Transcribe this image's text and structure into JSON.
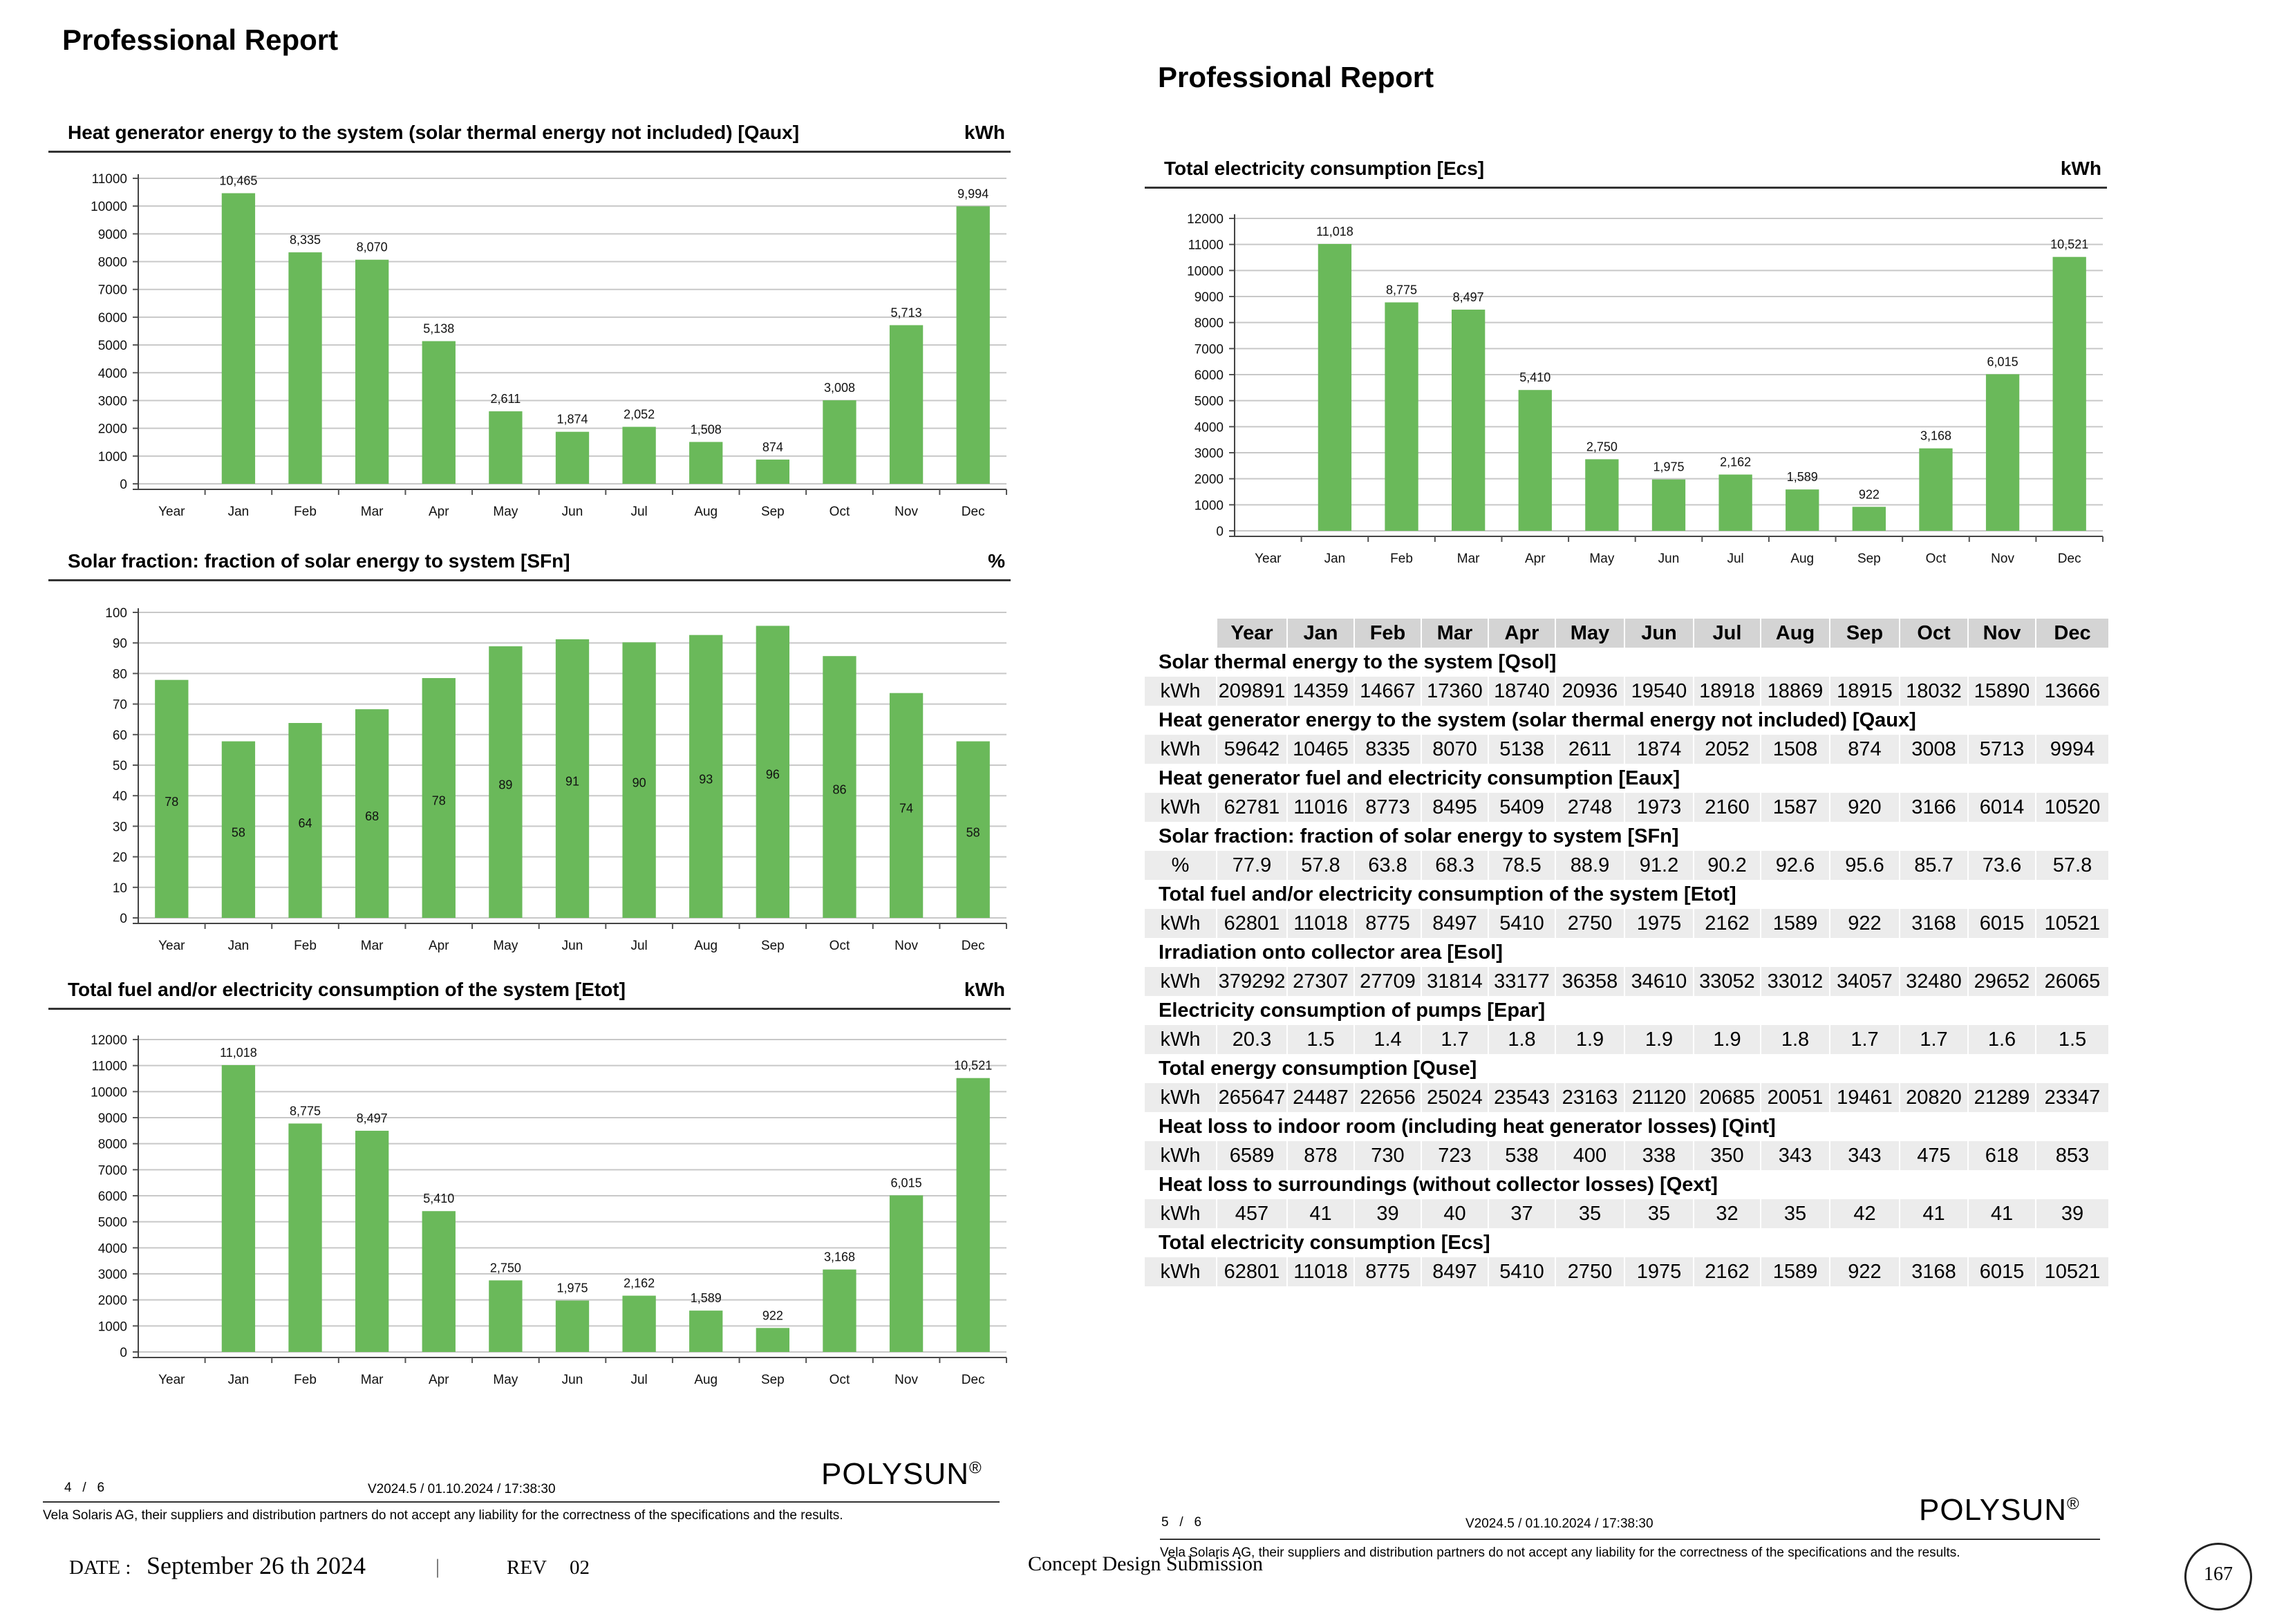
{
  "left_page": {
    "title": "Professional Report",
    "footer": {
      "page": "4",
      "sep": "/",
      "total": "6",
      "version": "V2024.5 / 01.10.2024 / 17:38:30",
      "disclaimer": "Vela Solaris AG, their suppliers and distribution partners do not accept any liability for the correctness of the specifications and the results.",
      "logo": "POLYSUN",
      "logo_mark": "®"
    }
  },
  "right_page": {
    "title": "Professional Report",
    "footer": {
      "page": "5",
      "sep": "/",
      "total": "6",
      "version": "V2024.5 / 01.10.2024 / 17:38:30",
      "disclaimer": "Vela Solaris AG, their suppliers and distribution partners do not accept any liability for the correctness of the specifications and the results.",
      "logo": "POLYSUN",
      "logo_mark": "®"
    }
  },
  "charts": [
    {
      "heading": "Heat generator energy to the system (solar thermal energy not included) [Qaux]",
      "unit": "kWh"
    },
    {
      "heading": "Solar fraction: fraction of solar energy to system [SFn]",
      "unit": "%"
    },
    {
      "heading": "Total fuel and/or electricity consumption of the system [Etot]",
      "unit": "kWh"
    },
    {
      "heading": "Total electricity consumption [Ecs]",
      "unit": "kWh"
    }
  ],
  "chart_data": [
    {
      "type": "bar",
      "title": "Heat generator energy to the system (solar thermal energy not included) [Qaux]",
      "unit": "kWh",
      "categories": [
        "Year",
        "Jan",
        "Feb",
        "Mar",
        "Apr",
        "May",
        "Jun",
        "Jul",
        "Aug",
        "Sep",
        "Oct",
        "Nov",
        "Dec"
      ],
      "values": [
        null,
        10465,
        8335,
        8070,
        5138,
        2611,
        1874,
        2052,
        1508,
        874,
        3008,
        5713,
        9994
      ],
      "labels": [
        "",
        "10,465",
        "8,335",
        "8,070",
        "5,138",
        "2,611",
        "1,874",
        "2,052",
        "1,508",
        "874",
        "3,008",
        "5,713",
        "9,994"
      ],
      "label_position": "above",
      "ylim": [
        0,
        11000
      ],
      "yticks": [
        0,
        1000,
        2000,
        3000,
        4000,
        5000,
        6000,
        7000,
        8000,
        9000,
        10000,
        11000
      ],
      "grid": true,
      "color": "#6ab95a"
    },
    {
      "type": "bar",
      "title": "Solar fraction: fraction of solar energy to system [SFn]",
      "unit": "%",
      "categories": [
        "Year",
        "Jan",
        "Feb",
        "Mar",
        "Apr",
        "May",
        "Jun",
        "Jul",
        "Aug",
        "Sep",
        "Oct",
        "Nov",
        "Dec"
      ],
      "values": [
        77.9,
        57.8,
        63.8,
        68.3,
        78.5,
        88.9,
        91.2,
        90.2,
        92.6,
        95.6,
        85.7,
        73.6,
        57.8
      ],
      "labels": [
        "78",
        "58",
        "64",
        "68",
        "78",
        "89",
        "91",
        "90",
        "93",
        "96",
        "86",
        "74",
        "58"
      ],
      "label_position": "inside",
      "ylim": [
        0,
        100
      ],
      "yticks": [
        0,
        10,
        20,
        30,
        40,
        50,
        60,
        70,
        80,
        90,
        100
      ],
      "grid": true,
      "color": "#6ab95a"
    },
    {
      "type": "bar",
      "title": "Total fuel and/or electricity consumption of the system [Etot]",
      "unit": "kWh",
      "categories": [
        "Year",
        "Jan",
        "Feb",
        "Mar",
        "Apr",
        "May",
        "Jun",
        "Jul",
        "Aug",
        "Sep",
        "Oct",
        "Nov",
        "Dec"
      ],
      "values": [
        null,
        11018,
        8775,
        8497,
        5410,
        2750,
        1975,
        2162,
        1589,
        922,
        3168,
        6015,
        10521
      ],
      "labels": [
        "",
        "11,018",
        "8,775",
        "8,497",
        "5,410",
        "2,750",
        "1,975",
        "2,162",
        "1,589",
        "922",
        "3,168",
        "6,015",
        "10,521"
      ],
      "label_position": "above",
      "ylim": [
        0,
        12000
      ],
      "yticks": [
        0,
        1000,
        2000,
        3000,
        4000,
        5000,
        6000,
        7000,
        8000,
        9000,
        10000,
        11000,
        12000
      ],
      "grid": true,
      "color": "#6ab95a"
    },
    {
      "type": "bar",
      "title": "Total electricity consumption [Ecs]",
      "unit": "kWh",
      "categories": [
        "Year",
        "Jan",
        "Feb",
        "Mar",
        "Apr",
        "May",
        "Jun",
        "Jul",
        "Aug",
        "Sep",
        "Oct",
        "Nov",
        "Dec"
      ],
      "values": [
        null,
        11018,
        8775,
        8497,
        5410,
        2750,
        1975,
        2162,
        1589,
        922,
        3168,
        6015,
        10521
      ],
      "labels": [
        "",
        "11,018",
        "8,775",
        "8,497",
        "5,410",
        "2,750",
        "1,975",
        "2,162",
        "1,589",
        "922",
        "3,168",
        "6,015",
        "10,521"
      ],
      "label_position": "above",
      "ylim": [
        0,
        12000
      ],
      "yticks": [
        0,
        1000,
        2000,
        3000,
        4000,
        5000,
        6000,
        7000,
        8000,
        9000,
        10000,
        11000,
        12000
      ],
      "grid": true,
      "color": "#6ab95a"
    }
  ],
  "table": {
    "columns": [
      "Year",
      "Jan",
      "Feb",
      "Mar",
      "Apr",
      "May",
      "Jun",
      "Jul",
      "Aug",
      "Sep",
      "Oct",
      "Nov",
      "Dec"
    ],
    "rows": [
      {
        "title": "Solar thermal energy to the system [Qsol]",
        "unit": "kWh",
        "values": [
          "209891",
          "14359",
          "14667",
          "17360",
          "18740",
          "20936",
          "19540",
          "18918",
          "18869",
          "18915",
          "18032",
          "15890",
          "13666"
        ]
      },
      {
        "title": "Heat generator energy to the system (solar thermal energy not included) [Qaux]",
        "unit": "kWh",
        "values": [
          "59642",
          "10465",
          "8335",
          "8070",
          "5138",
          "2611",
          "1874",
          "2052",
          "1508",
          "874",
          "3008",
          "5713",
          "9994"
        ]
      },
      {
        "title": "Heat generator fuel and electricity consumption [Eaux]",
        "unit": "kWh",
        "values": [
          "62781",
          "11016",
          "8773",
          "8495",
          "5409",
          "2748",
          "1973",
          "2160",
          "1587",
          "920",
          "3166",
          "6014",
          "10520"
        ]
      },
      {
        "title": "Solar fraction: fraction of solar energy to system [SFn]",
        "unit": "%",
        "values": [
          "77.9",
          "57.8",
          "63.8",
          "68.3",
          "78.5",
          "88.9",
          "91.2",
          "90.2",
          "92.6",
          "95.6",
          "85.7",
          "73.6",
          "57.8"
        ]
      },
      {
        "title": "Total fuel and/or electricity consumption of the system [Etot]",
        "unit": "kWh",
        "values": [
          "62801",
          "11018",
          "8775",
          "8497",
          "5410",
          "2750",
          "1975",
          "2162",
          "1589",
          "922",
          "3168",
          "6015",
          "10521"
        ]
      },
      {
        "title": "Irradiation onto collector area [Esol]",
        "unit": "kWh",
        "values": [
          "379292",
          "27307",
          "27709",
          "31814",
          "33177",
          "36358",
          "34610",
          "33052",
          "33012",
          "34057",
          "32480",
          "29652",
          "26065"
        ]
      },
      {
        "title": "Electricity consumption of pumps [Epar]",
        "unit": "kWh",
        "values": [
          "20.3",
          "1.5",
          "1.4",
          "1.7",
          "1.8",
          "1.9",
          "1.9",
          "1.9",
          "1.8",
          "1.7",
          "1.7",
          "1.6",
          "1.5"
        ]
      },
      {
        "title": "Total energy consumption [Quse]",
        "unit": "kWh",
        "values": [
          "265647",
          "24487",
          "22656",
          "25024",
          "23543",
          "23163",
          "21120",
          "20685",
          "20051",
          "19461",
          "20820",
          "21289",
          "23347"
        ]
      },
      {
        "title": "Heat loss to indoor room (including heat generator losses) [Qint]",
        "unit": "kWh",
        "values": [
          "6589",
          "878",
          "730",
          "723",
          "538",
          "400",
          "338",
          "350",
          "343",
          "343",
          "475",
          "618",
          "853"
        ]
      },
      {
        "title": "Heat loss to surroundings (without collector losses) [Qext]",
        "unit": "kWh",
        "values": [
          "457",
          "41",
          "39",
          "40",
          "37",
          "35",
          "35",
          "32",
          "35",
          "42",
          "41",
          "41",
          "39"
        ]
      },
      {
        "title": "Total electricity consumption [Ecs]",
        "unit": "kWh",
        "values": [
          "62801",
          "11018",
          "8775",
          "8497",
          "5410",
          "2750",
          "1975",
          "2162",
          "1589",
          "922",
          "3168",
          "6015",
          "10521"
        ]
      }
    ]
  },
  "bottom_bar": {
    "date_label": "DATE :",
    "date_value": "September 26 th 2024",
    "divider": "|",
    "rev_label": "REV",
    "rev_value": "02",
    "submission": "Concept Design Submission",
    "page_number": "167"
  }
}
